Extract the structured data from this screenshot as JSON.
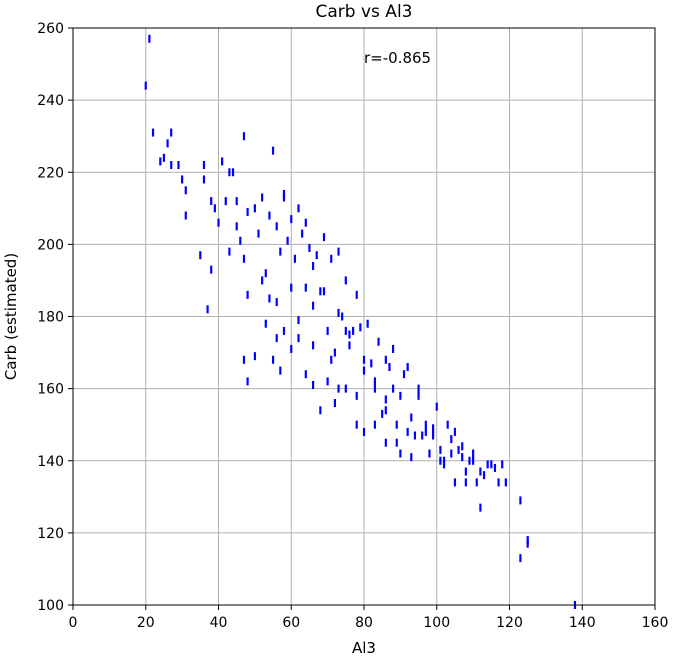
{
  "chart_data": {
    "type": "scatter",
    "title": "Carb vs Al3",
    "xlabel": "Al3",
    "ylabel": "Carb (estimated)",
    "xlim": [
      0,
      160
    ],
    "ylim": [
      100,
      260
    ],
    "xticks": [
      0,
      20,
      40,
      60,
      80,
      100,
      120,
      140,
      160
    ],
    "yticks": [
      100,
      120,
      140,
      160,
      180,
      200,
      220,
      240,
      260
    ],
    "grid": true,
    "marker": "vertical-dash",
    "color": "#0000ff",
    "annotation": "r=-0.865",
    "x": [
      20,
      21,
      22,
      24,
      25,
      26,
      27,
      27,
      29,
      30,
      31,
      31,
      35,
      36,
      36,
      37,
      38,
      38,
      39,
      40,
      42,
      43,
      44,
      45,
      46,
      47,
      48,
      50,
      50,
      52,
      52,
      53,
      54,
      55,
      55,
      56,
      57,
      58,
      58,
      59,
      60,
      60,
      61,
      62,
      62,
      63,
      64,
      64,
      65,
      66,
      66,
      67,
      68,
      68,
      69,
      70,
      70,
      71,
      72,
      72,
      73,
      74,
      75,
      75,
      76,
      77,
      78,
      78,
      79,
      80,
      80,
      81,
      82,
      83,
      83,
      84,
      85,
      86,
      86,
      87,
      88,
      89,
      90,
      90,
      91,
      92,
      93,
      94,
      95,
      96,
      97,
      98,
      99,
      100,
      101,
      102,
      103,
      104,
      105,
      106,
      107,
      108,
      109,
      110,
      111,
      112,
      113,
      114,
      115,
      116,
      117,
      118,
      119,
      123,
      123,
      125,
      125,
      138,
      47,
      48,
      56,
      57,
      60,
      66,
      73,
      75,
      43,
      45,
      41,
      47,
      54,
      56,
      62,
      71,
      78,
      86,
      89,
      93,
      97,
      102,
      105,
      108,
      112,
      48,
      51,
      53,
      58,
      64,
      66,
      69,
      73,
      76,
      80,
      83,
      86,
      88,
      92,
      95,
      99,
      101,
      104,
      107,
      110
    ],
    "y": [
      244,
      257,
      231,
      223,
      224,
      228,
      222,
      231,
      222,
      218,
      215,
      208,
      197,
      218,
      222,
      182,
      212,
      193,
      210,
      206,
      212,
      198,
      220,
      205,
      201,
      230,
      186,
      210,
      169,
      213,
      190,
      178,
      208,
      226,
      168,
      205,
      198,
      214,
      176,
      201,
      207,
      171,
      196,
      210,
      174,
      203,
      188,
      164,
      199,
      183,
      161,
      197,
      187,
      154,
      202,
      176,
      162,
      196,
      170,
      156,
      198,
      180,
      190,
      160,
      172,
      176,
      186,
      150,
      177,
      165,
      148,
      178,
      167,
      162,
      150,
      173,
      153,
      168,
      145,
      166,
      160,
      150,
      158,
      142,
      164,
      148,
      152,
      147,
      158,
      147,
      150,
      142,
      147,
      155,
      140,
      140,
      150,
      142,
      148,
      143,
      141,
      137,
      140,
      142,
      134,
      137,
      136,
      139,
      139,
      138,
      134,
      139,
      134,
      129,
      113,
      118,
      117,
      100,
      168,
      162,
      184,
      165,
      188,
      172,
      160,
      176,
      220,
      212,
      223,
      196,
      185,
      174,
      179,
      168,
      158,
      157,
      145,
      141,
      148,
      139,
      134,
      134,
      127,
      209,
      203,
      192,
      213,
      206,
      194,
      187,
      181,
      175,
      168,
      160,
      154,
      171,
      166,
      160,
      149,
      143,
      146,
      144,
      140
    ]
  }
}
